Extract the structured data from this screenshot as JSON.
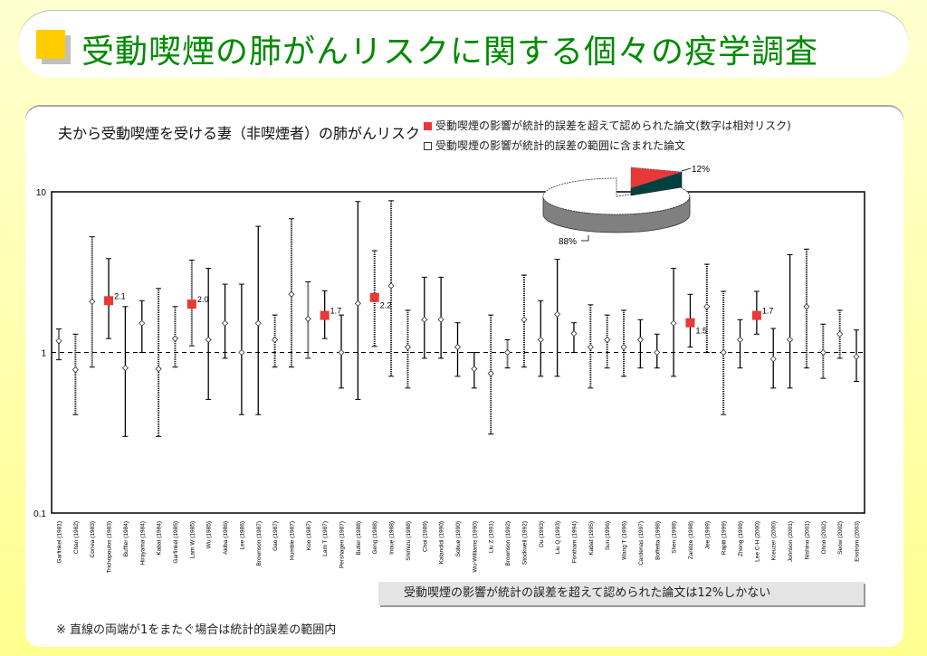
{
  "header": {
    "title": "受動喫煙の肺がんリスクに関する個々の疫学調査"
  },
  "colors": {
    "significant": "#e83838",
    "title_green": "#008a00",
    "pie_side": "#808080",
    "slice_side": "#004040"
  },
  "chart_data": {
    "type": "forest",
    "title": "夫から受動喫煙を受ける妻（非喫煙者）の肺がんリスク",
    "y_scale": "log",
    "ylim": [
      0.1,
      10
    ],
    "y_ticks": [
      "10",
      "1",
      "0.1"
    ],
    "reference_line": 1,
    "legend": [
      {
        "key": "significant",
        "label": "受動喫煙の影響が統計的誤差を超えて認められた論文(数字は相対リスク)"
      },
      {
        "key": "not_significant",
        "label": "受動喫煙の影響が統計的誤差の範囲に含まれた論文"
      }
    ],
    "studies": [
      {
        "name": "Garfinkel (1981)",
        "rr": 1.18,
        "lo": 0.9,
        "hi": 1.4,
        "line": "dotted"
      },
      {
        "name": "Chan (1982)",
        "rr": 0.78,
        "lo": 0.41,
        "hi": 1.3,
        "line": "dotted"
      },
      {
        "name": "Correa (1983)",
        "rr": 2.07,
        "lo": 0.81,
        "hi": 5.25,
        "line": "dotted"
      },
      {
        "name": "Trichopoulos (1983)",
        "rr": 2.1,
        "lo": 1.22,
        "hi": 3.84,
        "line": "solid",
        "sig": true,
        "label": "2.1"
      },
      {
        "name": "Buffler (1984)",
        "rr": 0.8,
        "lo": 0.3,
        "hi": 1.93,
        "line": "solid"
      },
      {
        "name": "Hirayama (1984)",
        "rr": 1.52,
        "lo": 1.0,
        "hi": 2.1,
        "line": "solid"
      },
      {
        "name": "Kabat (1984)",
        "rr": 0.79,
        "lo": 0.3,
        "hi": 2.5,
        "line": "dotted"
      },
      {
        "name": "Garfinkel (1985)",
        "rr": 1.22,
        "lo": 0.81,
        "hi": 1.93,
        "line": "dotted"
      },
      {
        "name": "Lam W (1985)",
        "rr": 2.0,
        "lo": 1.1,
        "hi": 3.76,
        "line": "dotted",
        "sig": true,
        "label": "2.0"
      },
      {
        "name": "Wu (1985)",
        "rr": 1.2,
        "lo": 0.51,
        "hi": 3.34,
        "line": "solid"
      },
      {
        "name": "Akiba (1986)",
        "rr": 1.52,
        "lo": 0.92,
        "hi": 2.66,
        "line": "solid"
      },
      {
        "name": "Lee (1986)",
        "rr": 1.0,
        "lo": 0.41,
        "hi": 2.66,
        "line": "solid"
      },
      {
        "name": "Brownson (1987)",
        "rr": 1.52,
        "lo": 0.41,
        "hi": 6.1,
        "line": "solid"
      },
      {
        "name": "Gao (1987)",
        "rr": 1.2,
        "lo": 0.81,
        "hi": 1.71,
        "line": "dotted"
      },
      {
        "name": "Humble (1987)",
        "rr": 2.3,
        "lo": 0.81,
        "hi": 6.8,
        "line": "dotted"
      },
      {
        "name": "Koo (1987)",
        "rr": 1.62,
        "lo": 0.92,
        "hi": 2.75,
        "line": "dotted"
      },
      {
        "name": "Lam T (1987)",
        "rr": 1.7,
        "lo": 1.22,
        "hi": 2.42,
        "line": "solid",
        "sig": true,
        "label": "1.7"
      },
      {
        "name": "Pershagen (1987)",
        "rr": 1.0,
        "lo": 0.6,
        "hi": 1.71,
        "line": "solid"
      },
      {
        "name": "Butler (1988)",
        "rr": 2.02,
        "lo": 0.51,
        "hi": 8.7,
        "line": "solid"
      },
      {
        "name": "Geng (1988)",
        "rr": 2.2,
        "lo": 1.09,
        "hi": 4.3,
        "line": "dotted",
        "sig": true,
        "label": "2.2"
      },
      {
        "name": "Inoue (1988)",
        "rr": 2.6,
        "lo": 0.71,
        "hi": 8.8,
        "line": "dotted"
      },
      {
        "name": "Shimizu (1988)",
        "rr": 1.08,
        "lo": 0.6,
        "hi": 1.83,
        "line": "dotted"
      },
      {
        "name": "Choi (1989)",
        "rr": 1.6,
        "lo": 0.92,
        "hi": 2.94,
        "line": "solid"
      },
      {
        "name": "Kalandidi (1990)",
        "rr": 1.6,
        "lo": 0.92,
        "hi": 2.94,
        "line": "solid"
      },
      {
        "name": "Sobue (1990)",
        "rr": 1.08,
        "lo": 0.71,
        "hi": 1.53,
        "line": "solid"
      },
      {
        "name": "Wu-Williams (1990)",
        "rr": 0.79,
        "lo": 0.6,
        "hi": 1.0,
        "line": "solid"
      },
      {
        "name": "Liu Z (1991)",
        "rr": 0.74,
        "lo": 0.31,
        "hi": 1.71,
        "line": "dotted"
      },
      {
        "name": "Brownson (1992)",
        "rr": 1.0,
        "lo": 0.8,
        "hi": 1.2,
        "line": "dotted"
      },
      {
        "name": "Stockwell (1992)",
        "rr": 1.6,
        "lo": 0.81,
        "hi": 3.03,
        "line": "dotted"
      },
      {
        "name": "Du (1993)",
        "rr": 1.2,
        "lo": 0.71,
        "hi": 2.1,
        "line": "solid"
      },
      {
        "name": "Liu Q (1993)",
        "rr": 1.73,
        "lo": 0.71,
        "hi": 3.8,
        "line": "solid"
      },
      {
        "name": "Fontham (1994)",
        "rr": 1.31,
        "lo": 1.0,
        "hi": 1.53,
        "line": "solid"
      },
      {
        "name": "Kabat (1995)",
        "rr": 1.08,
        "lo": 0.6,
        "hi": 1.98,
        "line": "dotted"
      },
      {
        "name": "Sun (1996)",
        "rr": 1.2,
        "lo": 0.8,
        "hi": 1.71,
        "line": "dotted"
      },
      {
        "name": "Wang T (1996)",
        "rr": 1.08,
        "lo": 0.71,
        "hi": 1.83,
        "line": "dotted"
      },
      {
        "name": "Cardenas (1997)",
        "rr": 1.2,
        "lo": 0.8,
        "hi": 1.6,
        "line": "solid"
      },
      {
        "name": "Boffetta (1998)",
        "rr": 1.0,
        "lo": 0.8,
        "hi": 1.3,
        "line": "solid"
      },
      {
        "name": "Shen (1998)",
        "rr": 1.52,
        "lo": 0.71,
        "hi": 3.34,
        "line": "solid"
      },
      {
        "name": "Zaridze (1998)",
        "rr": 1.53,
        "lo": 1.08,
        "hi": 2.3,
        "line": "solid",
        "sig": true,
        "label": "1.5"
      },
      {
        "name": "Jee (1999)",
        "rr": 1.93,
        "lo": 1.0,
        "hi": 3.54,
        "line": "dotted"
      },
      {
        "name": "Rapiti (1999)",
        "rr": 1.0,
        "lo": 0.41,
        "hi": 2.4,
        "line": "dotted"
      },
      {
        "name": "Zhong (1999)",
        "rr": 1.2,
        "lo": 0.8,
        "hi": 1.6,
        "line": "solid"
      },
      {
        "name": "Lee C-H (2000)",
        "rr": 1.7,
        "lo": 1.3,
        "hi": 2.4,
        "line": "solid",
        "sig": true,
        "label": "1.7"
      },
      {
        "name": "Kreuzer (2000)",
        "rr": 0.91,
        "lo": 0.6,
        "hi": 1.41,
        "line": "solid"
      },
      {
        "name": "Johnson (2001)",
        "rr": 1.2,
        "lo": 0.6,
        "hi": 4.06,
        "line": "solid"
      },
      {
        "name": "Nishino (2001)",
        "rr": 1.93,
        "lo": 0.8,
        "hi": 4.4,
        "line": "dotted"
      },
      {
        "name": "Ohno (2002)",
        "rr": 1.0,
        "lo": 0.69,
        "hi": 1.5,
        "line": "dotted"
      },
      {
        "name": "Seow (2002)",
        "rr": 1.3,
        "lo": 0.92,
        "hi": 1.83,
        "line": "dotted"
      },
      {
        "name": "Enstrom (2003)",
        "rr": 0.94,
        "lo": 0.66,
        "hi": 1.38,
        "line": "solid"
      }
    ],
    "pie": {
      "type": "pie",
      "slices": [
        {
          "label": "12%",
          "value": 12,
          "key": "significant"
        },
        {
          "label": "88%",
          "value": 88,
          "key": "not_significant"
        }
      ]
    }
  },
  "note_box": "受動喫煙の影響が統計の誤差を超えて認められた論文は12%しかない",
  "footnote": "※ 直線の両端が1をまたぐ場合は統計的誤差の範囲内"
}
